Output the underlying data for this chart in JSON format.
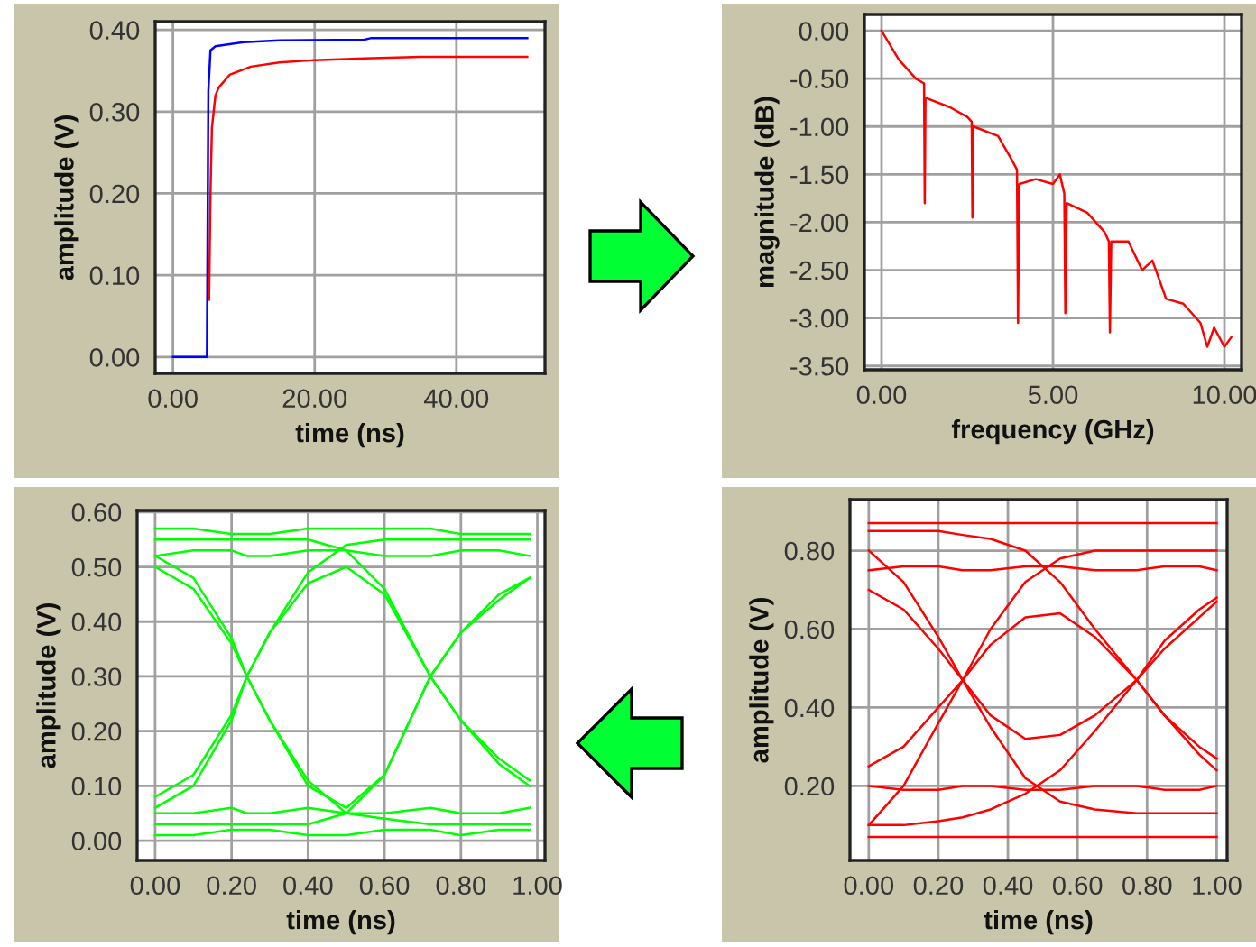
{
  "chart_data": [
    {
      "type": "line",
      "xlabel": "time (ns)",
      "ylabel": "amplitude (V)",
      "xlim": [
        -2.5,
        52.5
      ],
      "ylim": [
        -0.02,
        0.41
      ],
      "xticks": [
        {
          "value": 0,
          "label": "0.00"
        },
        {
          "value": 20,
          "label": "20.00"
        },
        {
          "value": 40,
          "label": "40.00"
        }
      ],
      "yticks": [
        {
          "value": 0,
          "label": "0.00"
        },
        {
          "value": 0.1,
          "label": "0.10"
        },
        {
          "value": 0.2,
          "label": "0.20"
        },
        {
          "value": 0.3,
          "label": "0.30"
        },
        {
          "value": 0.4,
          "label": "0.40"
        }
      ],
      "grid": true,
      "series": [
        {
          "color": "#ff0000",
          "x": [
            5.1,
            5.3,
            5.5,
            6.0,
            6.5,
            8,
            11,
            15,
            20,
            27,
            35,
            50
          ],
          "values": [
            0.07,
            0.2,
            0.28,
            0.32,
            0.33,
            0.345,
            0.355,
            0.36,
            0.363,
            0.365,
            0.367,
            0.367
          ]
        },
        {
          "color": "#0000ff",
          "x": [
            0,
            4.8,
            5.0,
            5.3,
            6,
            10,
            15,
            27,
            28,
            50
          ],
          "values": [
            0,
            0,
            0.325,
            0.375,
            0.38,
            0.385,
            0.387,
            0.388,
            0.39,
            0.39
          ]
        }
      ]
    },
    {
      "type": "line",
      "xlabel": "frequency (GHz)",
      "ylabel": "magnitude (dB)",
      "xlim": [
        -0.5,
        10.5
      ],
      "ylim": [
        -3.54,
        0.17
      ],
      "xticks": [
        {
          "value": 0,
          "label": "0.00"
        },
        {
          "value": 5,
          "label": "5.00"
        },
        {
          "value": 10,
          "label": "10.00"
        }
      ],
      "yticks": [
        {
          "value": 0,
          "label": "0.00"
        },
        {
          "value": -0.5,
          "label": "-0.50"
        },
        {
          "value": -1,
          "label": "-1.00"
        },
        {
          "value": -1.5,
          "label": "-1.50"
        },
        {
          "value": -2,
          "label": "-2.00"
        },
        {
          "value": -2.5,
          "label": "-2.50"
        },
        {
          "value": -3,
          "label": "-3.00"
        },
        {
          "value": -3.5,
          "label": "-3.50"
        }
      ],
      "grid": true,
      "series": [
        {
          "color": "#ff0000",
          "x": [
            0,
            0.5,
            1.0,
            1.24,
            1.26,
            1.28,
            2.0,
            2.5,
            2.63,
            2.65,
            2.68,
            3.4,
            3.8,
            3.95,
            3.98,
            4.02,
            4.5,
            5.0,
            5.2,
            5.33,
            5.36,
            5.4,
            6.0,
            6.5,
            6.63,
            6.66,
            6.7,
            7.2,
            7.6,
            7.9,
            8.3,
            8.8,
            9.3,
            9.5,
            9.7,
            10.0,
            10.2
          ],
          "values": [
            0,
            -0.3,
            -0.5,
            -0.55,
            -1.8,
            -0.7,
            -0.8,
            -0.9,
            -0.95,
            -1.95,
            -1.0,
            -1.1,
            -1.35,
            -1.45,
            -3.05,
            -1.6,
            -1.55,
            -1.6,
            -1.5,
            -1.7,
            -2.95,
            -1.8,
            -1.9,
            -2.1,
            -2.2,
            -3.15,
            -2.2,
            -2.2,
            -2.5,
            -2.4,
            -2.8,
            -2.85,
            -3.05,
            -3.3,
            -3.1,
            -3.3,
            -3.2
          ]
        }
      ]
    },
    {
      "type": "line",
      "xlabel": "time (ns)",
      "ylabel": "amplitude (V)",
      "xlim": [
        -0.047,
        1.02
      ],
      "ylim": [
        -0.036,
        0.603
      ],
      "xticks": [
        {
          "value": 0,
          "label": "0.00"
        },
        {
          "value": 0.2,
          "label": "0.20"
        },
        {
          "value": 0.4,
          "label": "0.40"
        },
        {
          "value": 0.6,
          "label": "0.60"
        },
        {
          "value": 0.8,
          "label": "0.80"
        },
        {
          "value": 1.0,
          "label": "1.00"
        }
      ],
      "yticks": [
        {
          "value": 0,
          "label": "0.00"
        },
        {
          "value": 0.1,
          "label": "0.10"
        },
        {
          "value": 0.2,
          "label": "0.20"
        },
        {
          "value": 0.3,
          "label": "0.30"
        },
        {
          "value": 0.4,
          "label": "0.40"
        },
        {
          "value": 0.5,
          "label": "0.50"
        },
        {
          "value": 0.6,
          "label": "0.60"
        }
      ],
      "grid": true,
      "x": [
        0,
        0.1,
        0.2,
        0.24,
        0.3,
        0.4,
        0.5,
        0.6,
        0.72,
        0.8,
        0.9,
        0.98
      ],
      "series": [
        {
          "color": "#00ff00",
          "values": [
            0.5,
            0.46,
            0.36,
            0.3,
            0.22,
            0.1,
            0.06,
            0.12,
            0.3,
            0.38,
            0.44,
            0.48
          ]
        },
        {
          "color": "#00ff00",
          "values": [
            0.08,
            0.12,
            0.23,
            0.3,
            0.38,
            0.47,
            0.5,
            0.45,
            0.3,
            0.22,
            0.15,
            0.11
          ]
        },
        {
          "color": "#00ff00",
          "values": [
            0.52,
            0.48,
            0.37,
            0.3,
            0.22,
            0.11,
            0.05,
            0.04,
            0.03,
            0.03,
            0.03,
            0.03
          ]
        },
        {
          "color": "#00ff00",
          "values": [
            0.06,
            0.1,
            0.22,
            0.3,
            0.38,
            0.49,
            0.54,
            0.55,
            0.55,
            0.55,
            0.55,
            0.55
          ]
        },
        {
          "color": "#00ff00",
          "values": [
            0.55,
            0.55,
            0.55,
            0.55,
            0.55,
            0.55,
            0.53,
            0.46,
            0.3,
            0.22,
            0.14,
            0.1
          ]
        },
        {
          "color": "#00ff00",
          "values": [
            0.03,
            0.03,
            0.03,
            0.03,
            0.03,
            0.03,
            0.05,
            0.12,
            0.3,
            0.38,
            0.45,
            0.48
          ]
        },
        {
          "color": "#00ff00",
          "values": [
            0.57,
            0.57,
            0.56,
            0.56,
            0.56,
            0.57,
            0.57,
            0.57,
            0.57,
            0.56,
            0.56,
            0.56
          ]
        },
        {
          "color": "#00ff00",
          "values": [
            0.01,
            0.01,
            0.02,
            0.02,
            0.02,
            0.01,
            0.01,
            0.02,
            0.02,
            0.01,
            0.02,
            0.02
          ]
        },
        {
          "color": "#00ff00",
          "values": [
            0.52,
            0.53,
            0.53,
            0.52,
            0.52,
            0.53,
            0.53,
            0.52,
            0.52,
            0.53,
            0.53,
            0.52
          ]
        },
        {
          "color": "#00ff00",
          "values": [
            0.05,
            0.05,
            0.06,
            0.05,
            0.05,
            0.06,
            0.05,
            0.05,
            0.06,
            0.05,
            0.05,
            0.06
          ]
        }
      ]
    },
    {
      "type": "line",
      "xlabel": "time (ns)",
      "ylabel": "amplitude (V)",
      "xlim": [
        -0.054,
        1.03
      ],
      "ylim": [
        0.01,
        0.93
      ],
      "xticks": [
        {
          "value": 0,
          "label": "0.00"
        },
        {
          "value": 0.2,
          "label": "0.20"
        },
        {
          "value": 0.4,
          "label": "0.40"
        },
        {
          "value": 0.6,
          "label": "0.60"
        },
        {
          "value": 0.8,
          "label": "0.80"
        },
        {
          "value": 1.0,
          "label": "1.00"
        }
      ],
      "yticks": [
        {
          "value": 0.2,
          "label": "0.20"
        },
        {
          "value": 0.4,
          "label": "0.40"
        },
        {
          "value": 0.6,
          "label": "0.60"
        },
        {
          "value": 0.8,
          "label": "0.80"
        }
      ],
      "grid": true,
      "x": [
        0,
        0.1,
        0.2,
        0.27,
        0.35,
        0.45,
        0.55,
        0.65,
        0.77,
        0.85,
        0.95,
        1.0
      ],
      "series": [
        {
          "color": "#ff0000",
          "values": [
            0.7,
            0.65,
            0.55,
            0.47,
            0.38,
            0.32,
            0.33,
            0.38,
            0.47,
            0.55,
            0.63,
            0.67
          ]
        },
        {
          "color": "#ff0000",
          "values": [
            0.25,
            0.3,
            0.4,
            0.47,
            0.56,
            0.63,
            0.64,
            0.58,
            0.47,
            0.38,
            0.3,
            0.27
          ]
        },
        {
          "color": "#ff0000",
          "values": [
            0.8,
            0.72,
            0.58,
            0.47,
            0.35,
            0.22,
            0.16,
            0.14,
            0.13,
            0.13,
            0.13,
            0.13
          ]
        },
        {
          "color": "#ff0000",
          "values": [
            0.1,
            0.2,
            0.36,
            0.47,
            0.6,
            0.72,
            0.78,
            0.8,
            0.8,
            0.8,
            0.8,
            0.8
          ]
        },
        {
          "color": "#ff0000",
          "values": [
            0.85,
            0.85,
            0.85,
            0.84,
            0.83,
            0.8,
            0.72,
            0.6,
            0.47,
            0.38,
            0.28,
            0.24
          ]
        },
        {
          "color": "#ff0000",
          "values": [
            0.1,
            0.1,
            0.11,
            0.12,
            0.14,
            0.18,
            0.24,
            0.34,
            0.47,
            0.57,
            0.65,
            0.68
          ]
        },
        {
          "color": "#ff0000",
          "values": [
            0.87,
            0.87,
            0.87,
            0.87,
            0.87,
            0.87,
            0.87,
            0.87,
            0.87,
            0.87,
            0.87,
            0.87
          ]
        },
        {
          "color": "#ff0000",
          "values": [
            0.07,
            0.07,
            0.07,
            0.07,
            0.07,
            0.07,
            0.07,
            0.07,
            0.07,
            0.07,
            0.07,
            0.07
          ]
        },
        {
          "color": "#ff0000",
          "values": [
            0.75,
            0.76,
            0.76,
            0.75,
            0.75,
            0.76,
            0.76,
            0.75,
            0.75,
            0.76,
            0.76,
            0.75
          ]
        },
        {
          "color": "#ff0000",
          "values": [
            0.2,
            0.19,
            0.19,
            0.2,
            0.2,
            0.19,
            0.19,
            0.2,
            0.2,
            0.19,
            0.19,
            0.2
          ]
        }
      ]
    }
  ]
}
